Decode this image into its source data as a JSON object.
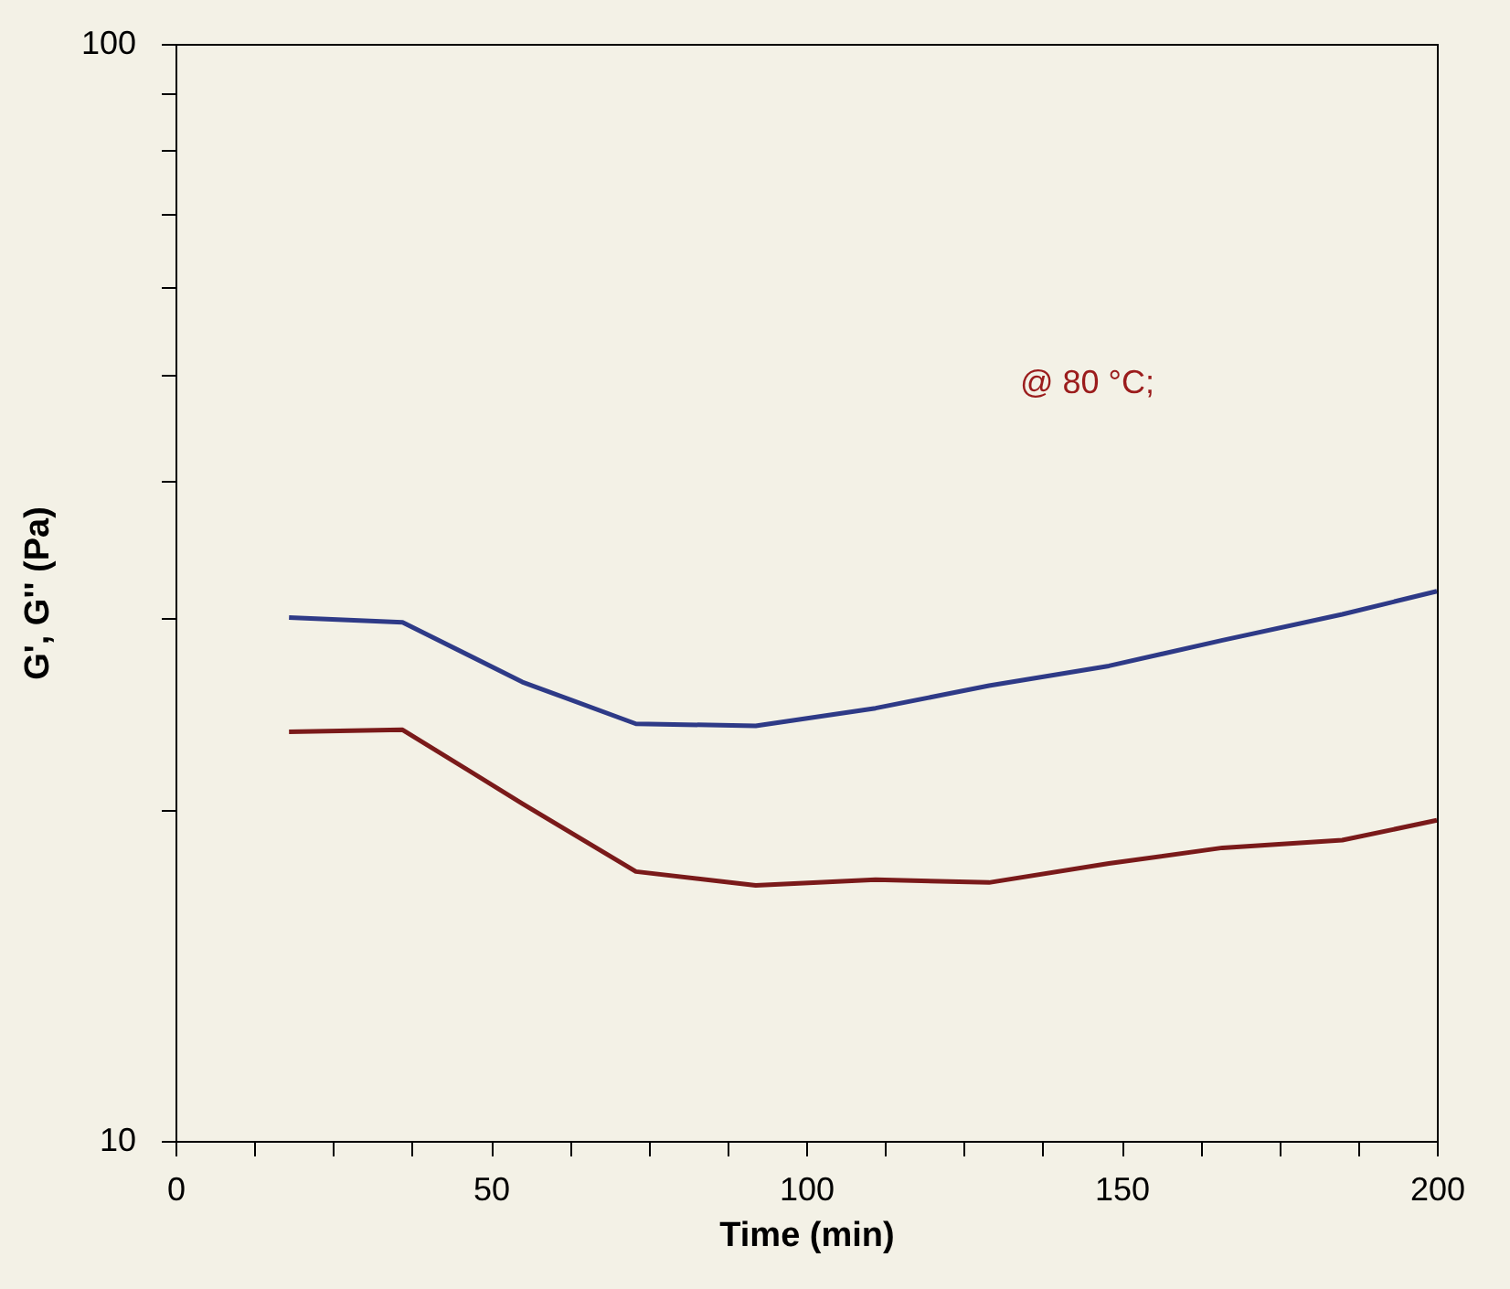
{
  "chart_data": {
    "type": "line",
    "xlabel": "Time (min)",
    "ylabel": "G', G'' (Pa)",
    "log": "y",
    "grid": false,
    "marker": "none",
    "line_style": "solid",
    "x": [
      18,
      36,
      55,
      73,
      92,
      111,
      129,
      148,
      166,
      185,
      200
    ],
    "xlim": [
      0,
      200
    ],
    "xticks": [
      0,
      {
        "value": 12.5,
        "label": null
      },
      {
        "value": 25,
        "label": null
      },
      {
        "value": 37.5,
        "label": null
      },
      50,
      {
        "value": 62.5,
        "label": null
      },
      {
        "value": 75,
        "label": null
      },
      {
        "value": 87.5,
        "label": null
      },
      100,
      {
        "value": 112.5,
        "label": null
      },
      {
        "value": 125,
        "label": null
      },
      {
        "value": 137.5,
        "label": null
      },
      150,
      {
        "value": 162.5,
        "label": null
      },
      {
        "value": 175,
        "label": null
      },
      {
        "value": 187.5,
        "label": null
      },
      200
    ],
    "ylim": [
      10,
      100
    ],
    "yticks": [
      10,
      {
        "value": 20,
        "label": null
      },
      {
        "value": 30,
        "label": null
      },
      {
        "value": 40,
        "label": null
      },
      {
        "value": 50,
        "label": null
      },
      {
        "value": 60,
        "label": null
      },
      {
        "value": 70,
        "label": null
      },
      {
        "value": 80,
        "label": null
      },
      {
        "value": 90,
        "label": null
      },
      100
    ],
    "series": [
      {
        "color": "#2e3a87",
        "values": [
          30.0,
          29.7,
          26.2,
          24.0,
          23.9,
          24.8,
          26.0,
          27.1,
          28.6,
          30.2,
          31.7
        ]
      },
      {
        "color": "#7a1a1a",
        "values": [
          23.6,
          23.7,
          20.3,
          17.6,
          17.1,
          17.3,
          17.2,
          17.9,
          18.5,
          18.8,
          19.6
        ]
      }
    ],
    "annotations": [
      "@ 80 °C;"
    ]
  }
}
